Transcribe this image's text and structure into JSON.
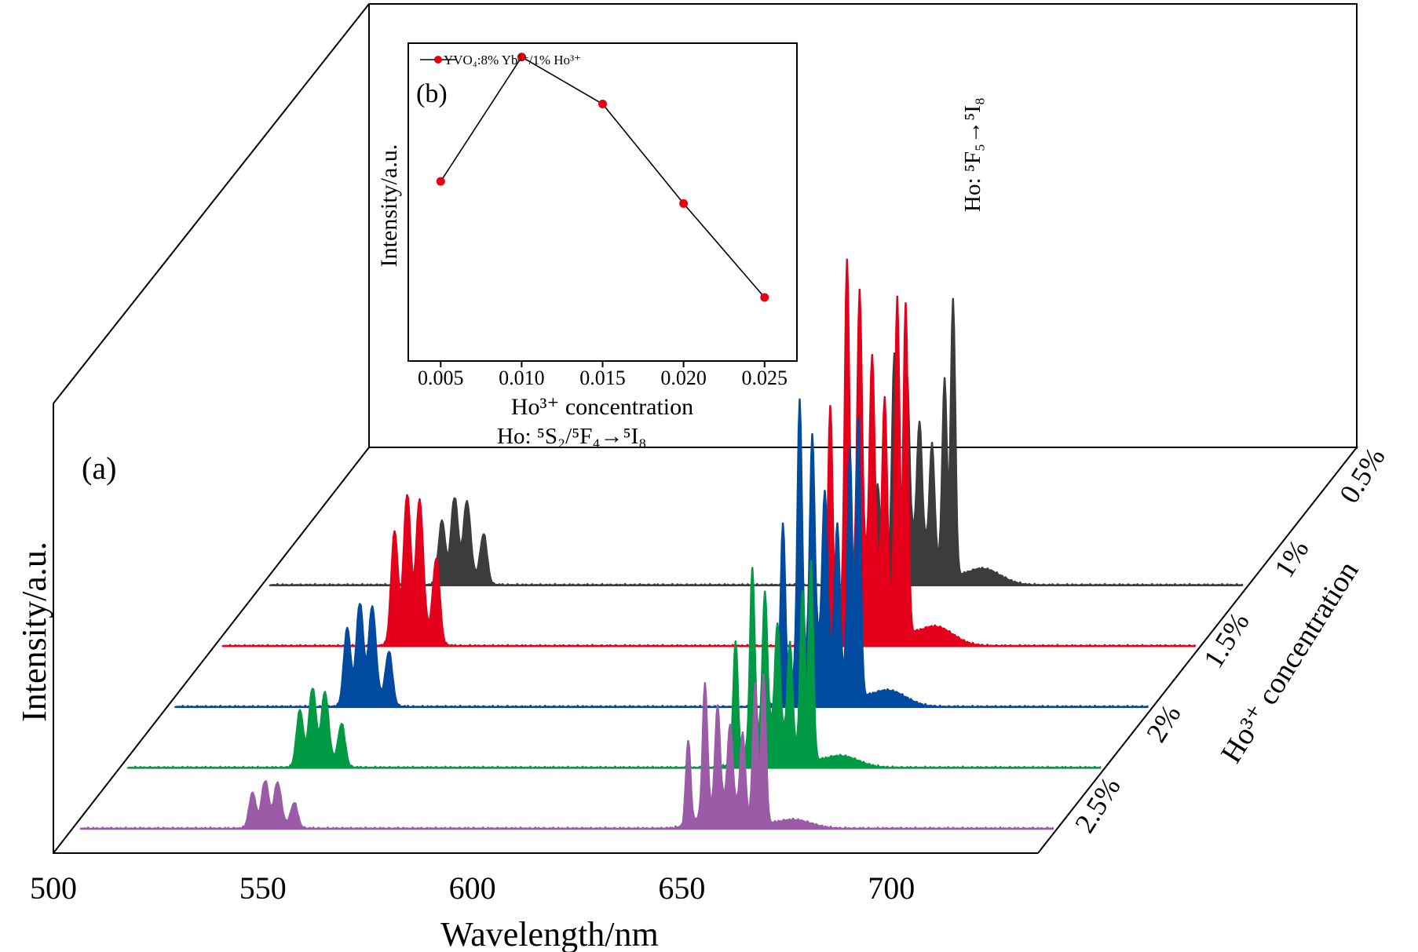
{
  "panel_a_label": "(a)",
  "panel_b_label": "(b)",
  "inset_legend_label": "YVO₄:8% Yb³⁺/1% Ho³⁺",
  "inset_y_label": "Intensity/a.u.",
  "inset_x_label": "Ho³⁺ concentration",
  "inset_x_ticks": [
    "0.005",
    "0.010",
    "0.015",
    "0.020",
    "0.025"
  ],
  "colors": {
    "c05": "#3a3d3c",
    "c10": "#e4001b",
    "c15": "#004aa0",
    "c20": "#009a44",
    "c25": "#9b5ba6",
    "inset_marker": "#e60012"
  },
  "chart_data": [
    {
      "type": "area",
      "xlabel": "Wavelength/nm",
      "ylabel": "Intensity/a.u.",
      "zlabel": "Ho³⁺ concentration",
      "x_ticks": [
        "500",
        "550",
        "600",
        "650",
        "700"
      ],
      "xlim": [
        500,
        735
      ],
      "z_ticks": [
        "0.5%",
        "1%",
        "1.5%",
        "2%",
        "2.5%"
      ],
      "annotations": [
        {
          "text": "Ho: ⁵S₂/⁵F₄→⁵I₈",
          "x": 548
        },
        {
          "text": "Ho: ⁵F₅→⁵I₈",
          "x": 660
        }
      ],
      "series": [
        {
          "name": "0.5%",
          "green_peaks": [
            [
              543,
              18
            ],
            [
              546,
              22
            ],
            [
              549,
              20
            ],
            [
              553,
              14
            ]
          ],
          "red_peaks": [
            [
              647,
              28
            ],
            [
              651,
              60
            ],
            [
              654,
              48
            ],
            [
              657,
              33
            ],
            [
              660,
              31
            ],
            [
              663,
              56
            ],
            [
              665,
              82
            ]
          ]
        },
        {
          "name": "1%",
          "green_peaks": [
            [
              543,
              32
            ],
            [
              546,
              38
            ],
            [
              549,
              35
            ],
            [
              553,
              24
            ]
          ],
          "red_peaks": [
            [
              647,
              68
            ],
            [
              651,
              100
            ],
            [
              654,
              81
            ],
            [
              657,
              60
            ],
            [
              660,
              55
            ],
            [
              663,
              95
            ],
            [
              665,
              97
            ]
          ]
        },
        {
          "name": "1.5%",
          "green_peaks": [
            [
              543,
              22
            ],
            [
              546,
              26
            ],
            [
              549,
              24
            ],
            [
              553,
              15
            ]
          ],
          "red_peaks": [
            [
              647,
              52
            ],
            [
              651,
              80
            ],
            [
              654,
              62
            ],
            [
              657,
              44
            ],
            [
              660,
              40
            ],
            [
              663,
              70
            ],
            [
              665,
              82
            ]
          ]
        },
        {
          "name": "2%",
          "green_peaks": [
            [
              543,
              16
            ],
            [
              546,
              20
            ],
            [
              549,
              18
            ],
            [
              553,
              12
            ]
          ],
          "red_peaks": [
            [
              647,
              36
            ],
            [
              651,
              52
            ],
            [
              654,
              40
            ],
            [
              657,
              30
            ],
            [
              660,
              28
            ],
            [
              663,
              48
            ],
            [
              665,
              59
            ]
          ]
        },
        {
          "name": "2.5%",
          "green_peaks": [
            [
              543,
              10
            ],
            [
              546,
              12
            ],
            [
              549,
              11
            ],
            [
              553,
              7
            ]
          ],
          "red_peaks": [
            [
              647,
              25
            ],
            [
              651,
              38
            ],
            [
              654,
              28
            ],
            [
              657,
              22
            ],
            [
              660,
              22
            ],
            [
              663,
              40
            ],
            [
              665,
              44
            ]
          ]
        }
      ]
    },
    {
      "type": "line",
      "x": [
        0.005,
        0.01,
        0.015,
        0.02,
        0.025
      ],
      "values": [
        0.55,
        1.0,
        0.83,
        0.47,
        0.13
      ],
      "xlim": [
        0.003,
        0.027
      ],
      "ylim": [
        -0.1,
        1.05
      ]
    }
  ]
}
